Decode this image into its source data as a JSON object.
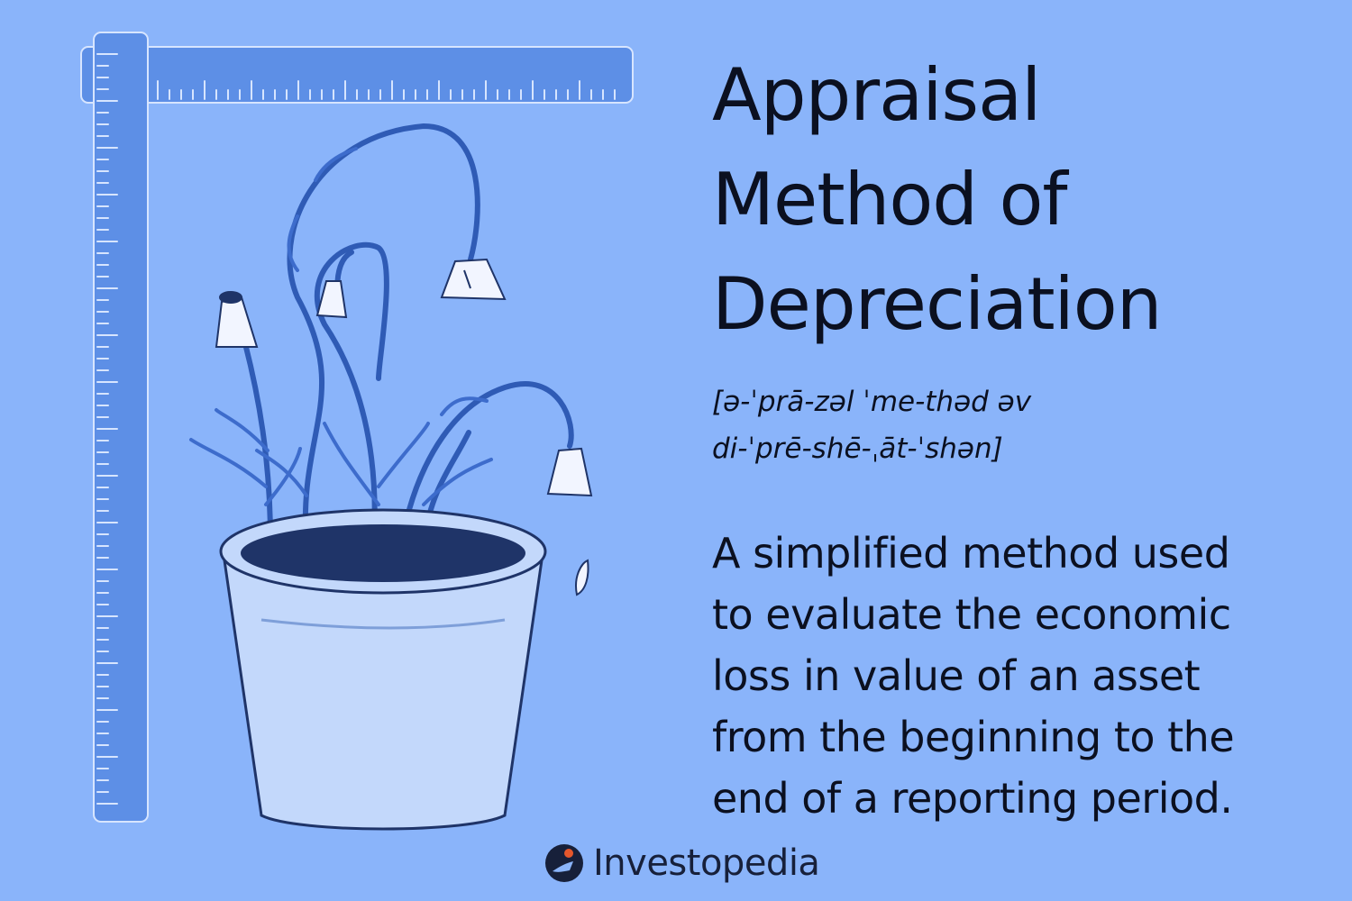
{
  "title": {
    "lines": [
      "Appraisal",
      "Method of",
      "Depreciation"
    ]
  },
  "pronunciation": {
    "lines": [
      "[ə-ˈprā-zəl ˈme-thəd əv",
      "di-ˈprē-shē-ˌāt-ˈshən]"
    ]
  },
  "definition": {
    "lines": [
      "A simplified method used",
      "to evaluate the economic",
      "loss in value of an asset",
      "from the beginning to the",
      "end of a reporting period."
    ]
  },
  "brand": {
    "name": "Investopedia",
    "logo_icon": "investopedia-logo-icon"
  },
  "colors": {
    "background": "#8ab4fa",
    "ruler": "#5d8fe6",
    "pot": "#c3d8fb",
    "soil": "#1f3468",
    "stem": "#2f5bb5",
    "text": "#0b1020",
    "logo_accent": "#e5572c"
  }
}
